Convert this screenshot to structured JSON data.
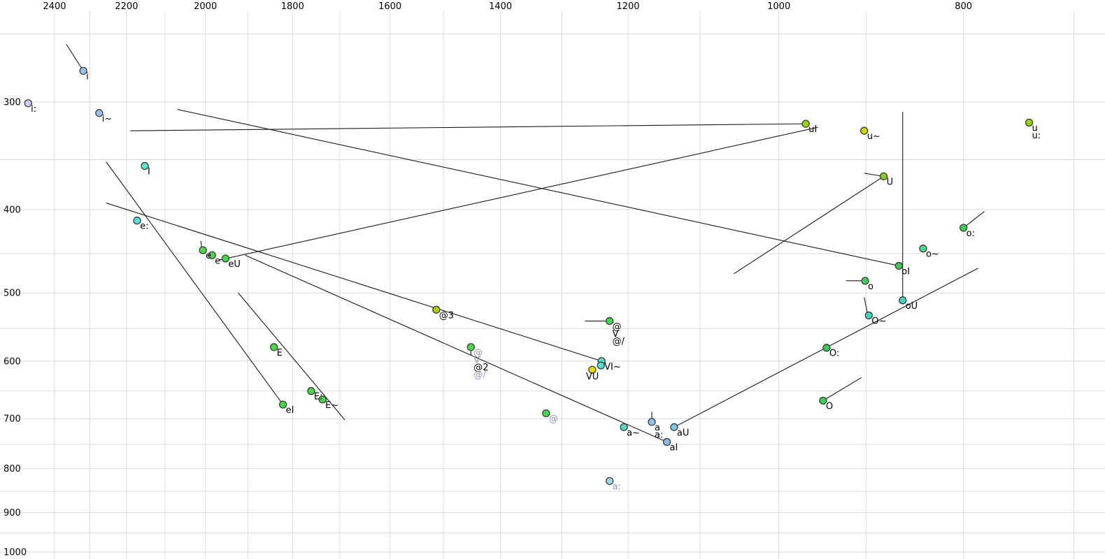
{
  "chart_data": {
    "type": "scatter",
    "title": "",
    "description": "Vowel formant plot (F2 horizontal, F1 vertical), both axes logarithmic and reversed, gridlines on, X-SAMPA style vowel labels with diphthong trajectory lines",
    "x_axis": {
      "unit": "Hz",
      "scale": "log",
      "reversed": true,
      "tick_labels": [
        2400,
        2200,
        2000,
        1800,
        1600,
        1400,
        1200,
        1000,
        800
      ],
      "grid_step": 100,
      "grid_min": 700,
      "grid_max": 2400
    },
    "y_axis": {
      "unit": "Hz",
      "scale": "log",
      "reversed": false,
      "tick_labels": [
        300,
        400,
        500,
        600,
        700,
        800,
        900,
        1000
      ],
      "grid_step": 50,
      "grid_min": 250,
      "grid_max": 1000
    },
    "colors": {
      "grid": "#d9d9d9",
      "line": "#1a1a1a",
      "label": "#000000",
      "label_muted": "#9494b4",
      "dot_border": "#3c3c3c",
      "axis_text": "#000000"
    },
    "points": [
      {
        "labels": [
          "i:"
        ],
        "f2": 2478,
        "f1": 301,
        "color": "#ccccf4"
      },
      {
        "labels": [
          "i"
        ],
        "f2": 2318,
        "f1": 276,
        "color": "#9cc0ec"
      },
      {
        "labels": [
          "i~"
        ],
        "f2": 2274,
        "f1": 309,
        "color": "#9cc0ec"
      },
      {
        "labels": [
          "I"
        ],
        "f2": 2152,
        "f1": 356,
        "color": "#58e8c8"
      },
      {
        "labels": [
          "e:"
        ],
        "f2": 2172,
        "f1": 412,
        "color": "#5ce0d4"
      },
      {
        "labels": [
          "e"
        ],
        "f2": 2006,
        "f1": 446,
        "color": "#4cd84c"
      },
      {
        "labels": [
          "e"
        ],
        "f2": 1984,
        "f1": 452,
        "color": "#4cd84c"
      },
      {
        "labels": [
          "eU"
        ],
        "f2": 1952,
        "f1": 456,
        "color": "#44d848"
      },
      {
        "labels": [
          "@3"
        ],
        "f2": 1513,
        "f1": 523,
        "color": "#a8d000"
      },
      {
        "labels": [
          "E"
        ],
        "f2": 1841,
        "f1": 578,
        "color": "#4cd84c"
      },
      {
        "labels": [
          {
            "t": "@",
            "muted": true
          },
          {
            "t": "V",
            "muted": true
          },
          {
            "t": "@2"
          },
          {
            "t": "@/",
            "muted": true
          }
        ],
        "f2": 1451,
        "f1": 578,
        "color": "#4cd84c"
      },
      {
        "labels": [
          "E:"
        ],
        "f2": 1760,
        "f1": 650,
        "color": "#44d848"
      },
      {
        "labels": [
          "E~"
        ],
        "f2": 1736,
        "f1": 665,
        "color": "#44d848"
      },
      {
        "labels": [
          "eI"
        ],
        "f2": 1821,
        "f1": 674,
        "color": "#44d848"
      },
      {
        "labels": [
          "@",
          "V",
          "@/"
        ],
        "f2": 1227,
        "f1": 539,
        "color": "#40d84c"
      },
      {
        "labels": [
          "VI~"
        ],
        "f2": 1239,
        "f1": 600,
        "color": "#50e0c8"
      },
      {
        "labels": [],
        "f2": 1240,
        "f1": 607,
        "color": "#50e0c8"
      },
      {
        "labels": [
          "VU"
        ],
        "f2": 1253,
        "f1": 614,
        "color": "#f0d800",
        "ldx": -9,
        "ldy": 14
      },
      {
        "labels": [
          {
            "t": "@",
            "muted": true
          }
        ],
        "f2": 1325,
        "f1": 690,
        "color": "#40d84c"
      },
      {
        "labels": [
          "a~"
        ],
        "f2": 1206,
        "f1": 716,
        "color": "#54d8c4"
      },
      {
        "labels": [
          "a",
          "a:"
        ],
        "f2": 1166,
        "f1": 706,
        "color": "#90c4ec"
      },
      {
        "labels": [
          "aI"
        ],
        "f2": 1145,
        "f1": 745,
        "color": "#90b8e4"
      },
      {
        "labels": [
          "aU"
        ],
        "f2": 1135,
        "f1": 716,
        "color": "#7cc8e4"
      },
      {
        "labels": [
          {
            "t": "a:",
            "muted": true
          }
        ],
        "f2": 1227,
        "f1": 827,
        "color": "#9cd8ec"
      },
      {
        "labels": [
          "uI"
        ],
        "f2": 968,
        "f1": 318,
        "color": "#a0d400"
      },
      {
        "labels": [
          "u~"
        ],
        "f2": 902,
        "f1": 324,
        "color": "#ccd800"
      },
      {
        "labels": [
          "u",
          "u:"
        ],
        "f2": 739,
        "f1": 317,
        "color": "#9cd400"
      },
      {
        "labels": [
          "U"
        ],
        "f2": 881,
        "f1": 366,
        "color": "#84cc20"
      },
      {
        "labels": [
          "o:"
        ],
        "f2": 800,
        "f1": 420,
        "color": "#38cc58"
      },
      {
        "labels": [
          "o~"
        ],
        "f2": 840,
        "f1": 444,
        "color": "#48dc84"
      },
      {
        "labels": [
          "oI"
        ],
        "f2": 865,
        "f1": 465,
        "color": "#38cc50"
      },
      {
        "labels": [
          "o"
        ],
        "f2": 901,
        "f1": 484,
        "color": "#38d058"
      },
      {
        "labels": [
          "oU"
        ],
        "f2": 861,
        "f1": 510,
        "color": "#40d8c0"
      },
      {
        "labels": [
          "O~"
        ],
        "f2": 897,
        "f1": 531,
        "color": "#40d8b4"
      },
      {
        "labels": [
          "O:"
        ],
        "f2": 944,
        "f1": 579,
        "color": "#38cc58"
      },
      {
        "labels": [
          "O"
        ],
        "f2": 948,
        "f1": 667,
        "color": "#38d058"
      }
    ],
    "lines": [
      {
        "name": "i-tail",
        "f2a": 2366,
        "f1a": 257,
        "f2b": 2318,
        "f1b": 276
      },
      {
        "name": "eI-traj",
        "f2a": 2255,
        "f1a": 352,
        "f2b": 1821,
        "f1b": 674
      },
      {
        "name": "uI-traj",
        "f2a": 2190,
        "f1a": 324,
        "f2b": 968,
        "f1b": 318
      },
      {
        "name": "oI-traj",
        "f2a": 2069,
        "f1a": 306,
        "f2b": 865,
        "f1b": 465
      },
      {
        "name": "eU-traj",
        "f2a": 1968,
        "f1a": 458,
        "f2b": 954,
        "f1b": 321
      },
      {
        "name": "V-traj",
        "f2a": 2255,
        "f1a": 393,
        "f2b": 1239,
        "f1b": 600
      },
      {
        "name": "aI-traj",
        "f2a": 1906,
        "f1a": 452,
        "f2b": 1145,
        "f1b": 745
      },
      {
        "name": "E-traj",
        "f2a": 1922,
        "f1a": 500,
        "f2b": 1690,
        "f1b": 702
      },
      {
        "name": "e-tick",
        "f2a": 2011,
        "f1a": 435,
        "f2b": 2008,
        "f1b": 447
      },
      {
        "name": "@2-tick",
        "f2a": 1451,
        "f1a": 579,
        "f2b": 1451,
        "f1b": 591
      },
      {
        "name": "@-tail",
        "f2a": 1264,
        "f1a": 539,
        "f2b": 1227,
        "f1b": 539
      },
      {
        "name": "a-tick",
        "f2a": 1166,
        "f1a": 687,
        "f2b": 1166,
        "f1b": 706
      },
      {
        "name": "O:-traj",
        "f2a": 1135,
        "f1a": 716,
        "f2b": 786,
        "f1b": 468
      },
      {
        "name": "U-traj",
        "f2a": 1056,
        "f1a": 475,
        "f2b": 881,
        "f1b": 366
      },
      {
        "name": "U-tail",
        "f2a": 902,
        "f1a": 363,
        "f2b": 881,
        "f1b": 366
      },
      {
        "name": "oU-traj",
        "f2a": 861,
        "f1a": 308,
        "f2b": 861,
        "f1b": 510
      },
      {
        "name": "o-tail",
        "f2a": 922,
        "f1a": 484,
        "f2b": 901,
        "f1b": 484
      },
      {
        "name": "o:-tail",
        "f2a": 800,
        "f1a": 420,
        "f2b": 780,
        "f1b": 402
      },
      {
        "name": "O~-tick",
        "f2a": 902,
        "f1a": 506,
        "f2b": 898,
        "f1b": 531
      },
      {
        "name": "O-tail",
        "f2a": 948,
        "f1a": 667,
        "f2b": 905,
        "f1b": 627
      }
    ]
  }
}
